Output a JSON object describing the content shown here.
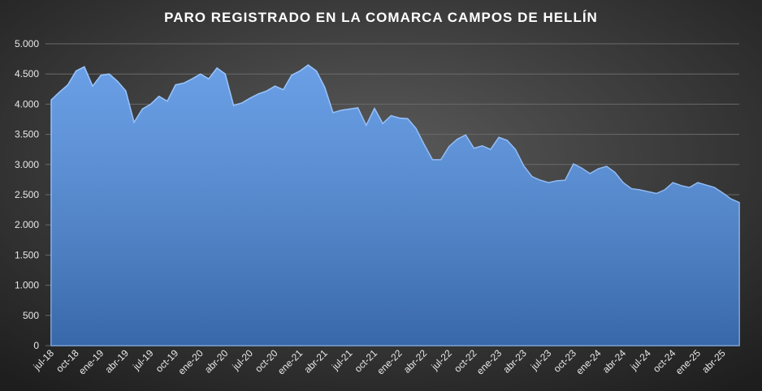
{
  "chart_data": {
    "type": "area",
    "title": "PARO REGISTRADO  EN LA COMARCA  CAMPOS  DE HELLÍN",
    "categories": [
      "jul-18",
      null,
      null,
      "oct-18",
      null,
      null,
      "ene-19",
      null,
      null,
      "abr-19",
      null,
      null,
      "jul-19",
      null,
      null,
      "oct-19",
      null,
      null,
      "ene-20",
      null,
      null,
      "abr-20",
      null,
      null,
      "jul-20",
      null,
      null,
      "oct-20",
      null,
      null,
      "ene-21",
      null,
      null,
      "abr-21",
      null,
      null,
      "jul-21",
      null,
      null,
      "oct-21",
      null,
      null,
      "ene-22",
      null,
      null,
      "abr-22",
      null,
      null,
      "jul-22",
      null,
      null,
      "oct-22",
      null,
      null,
      "ene-23",
      null,
      null,
      "abr-23",
      null,
      null,
      "jul-23",
      null,
      null,
      "oct-23",
      null,
      null,
      "ene-24",
      null,
      null,
      "abr-24",
      null,
      null,
      "jul-24",
      null,
      null,
      "oct-24",
      null,
      null,
      "ene-25",
      null,
      null,
      "abr-25",
      null,
      null
    ],
    "values": [
      4070,
      4200,
      4320,
      4550,
      4620,
      4300,
      4480,
      4500,
      4380,
      4220,
      3700,
      3920,
      4000,
      4130,
      4050,
      4320,
      4350,
      4420,
      4500,
      4420,
      4600,
      4500,
      3980,
      4020,
      4100,
      4170,
      4220,
      4300,
      4240,
      4480,
      4550,
      4650,
      4550,
      4280,
      3860,
      3900,
      3920,
      3940,
      3650,
      3930,
      3680,
      3810,
      3770,
      3760,
      3600,
      3330,
      3080,
      3080,
      3300,
      3420,
      3490,
      3270,
      3310,
      3250,
      3450,
      3400,
      3250,
      2980,
      2800,
      2740,
      2700,
      2730,
      2740,
      3010,
      2940,
      2850,
      2930,
      2970,
      2870,
      2700,
      2600,
      2580,
      2550,
      2520,
      2580,
      2700,
      2650,
      2620,
      2700,
      2660,
      2620,
      2530,
      2430,
      2370
    ],
    "color": "#4a8ae0",
    "ylim": [
      0,
      5000
    ],
    "yticks": [
      0,
      500,
      {
        "value": 1000,
        "label": "1.000"
      },
      {
        "value": 1500,
        "label": "1.500"
      },
      {
        "value": 2000,
        "label": "2.000"
      },
      {
        "value": 2500,
        "label": "2.500"
      },
      {
        "value": 3000,
        "label": "3.000"
      },
      {
        "value": 3500,
        "label": "3.500"
      },
      {
        "value": 4000,
        "label": "4.000"
      },
      {
        "value": 4500,
        "label": "4.500"
      },
      {
        "value": 5000,
        "label": "5.000"
      }
    ],
    "grid": true
  }
}
